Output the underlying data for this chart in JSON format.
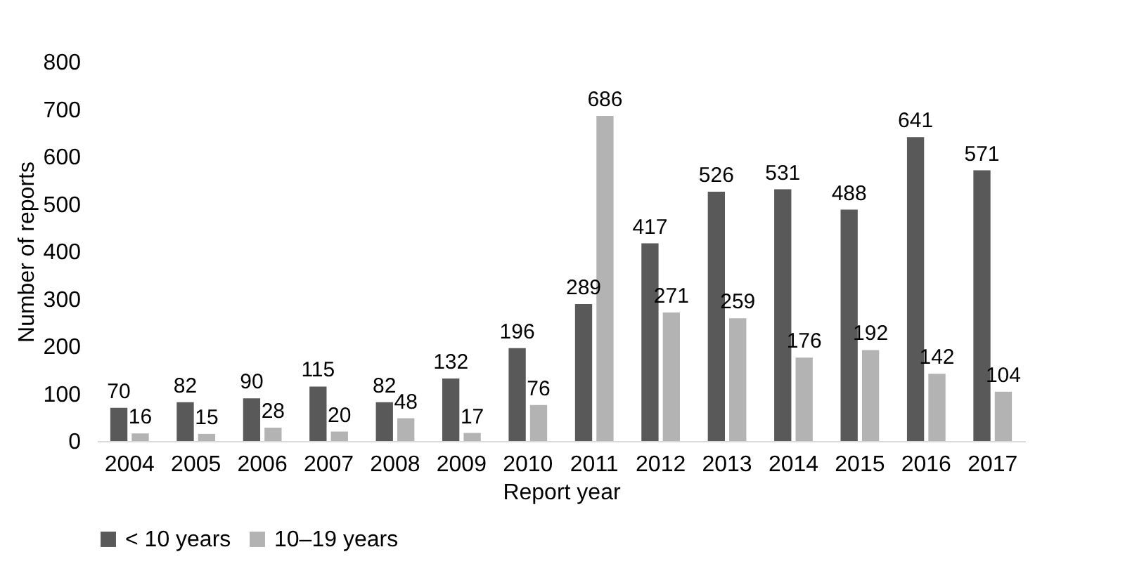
{
  "chart_data": {
    "type": "bar",
    "xlabel": "Report year",
    "ylabel": "Number of reports",
    "categories": [
      "2004",
      "2005",
      "2006",
      "2007",
      "2008",
      "2009",
      "2010",
      "2011",
      "2012",
      "2013",
      "2014",
      "2015",
      "2016",
      "2017"
    ],
    "series": [
      {
        "name": "< 10 years",
        "color": "#595959",
        "values": [
          70,
          82,
          90,
          115,
          82,
          132,
          196,
          289,
          417,
          526,
          531,
          488,
          641,
          571
        ]
      },
      {
        "name": "10–19 years",
        "color": "#b3b3b3",
        "values": [
          16,
          15,
          28,
          20,
          48,
          17,
          76,
          686,
          271,
          259,
          176,
          192,
          142,
          104
        ]
      }
    ],
    "ylim": [
      0,
      800
    ],
    "yticks": [
      0,
      100,
      200,
      300,
      400,
      500,
      600,
      700,
      800
    ],
    "grid": false,
    "legend": "bottom",
    "data_labels": true
  }
}
